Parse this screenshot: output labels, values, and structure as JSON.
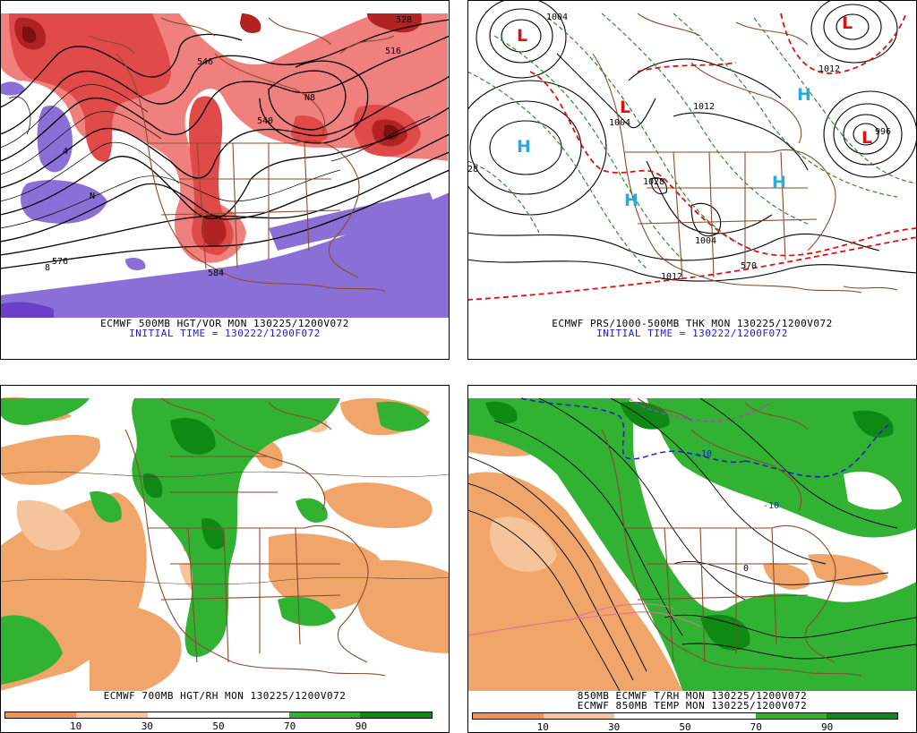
{
  "panels": {
    "top_left": {
      "caption1": "ECMWF 500MB HGT/VOR MON 130225/1200V072",
      "caption2": "INITIAL TIME = 130222/1200F072",
      "contour_labels": [
        "576",
        "540",
        "546",
        "516",
        "584",
        "528",
        "N8",
        "4",
        "8",
        "N"
      ]
    },
    "top_right": {
      "caption1": "ECMWF PRS/1000-500MB THK MON 130225/1200V072",
      "caption2": "INITIAL TIME = 130222/1200F072",
      "contour_labels": [
        "1004",
        "1012",
        "1028",
        "1004",
        "1012",
        "570",
        "28",
        "1004",
        "996",
        "1012"
      ],
      "symbols": [
        "H",
        "H",
        "H",
        "H",
        "L",
        "L",
        "L",
        "L"
      ]
    },
    "bottom_left": {
      "caption1": "ECMWF 700MB HGT/RH MON 130225/1200V072",
      "legend_ticks": [
        "10",
        "30",
        "50",
        "70",
        "90"
      ],
      "legend_colors": [
        "#f0905a",
        "#f6c49a",
        "#ffffff",
        "#ffffff",
        "#31b232",
        "#0e8a14"
      ]
    },
    "bottom_right": {
      "caption1": "850MB ECMWF T/RH MON 130225/1200V072",
      "caption2": "ECMWF 850MB TEMP MON 130225/1200V072",
      "contour_labels": [
        "-10",
        "-10",
        "0"
      ],
      "legend_ticks": [
        "10",
        "30",
        "50",
        "70",
        "90"
      ],
      "legend_colors": [
        "#f0905a",
        "#f6c49a",
        "#ffffff",
        "#ffffff",
        "#31b232",
        "#0e8a14"
      ]
    }
  }
}
